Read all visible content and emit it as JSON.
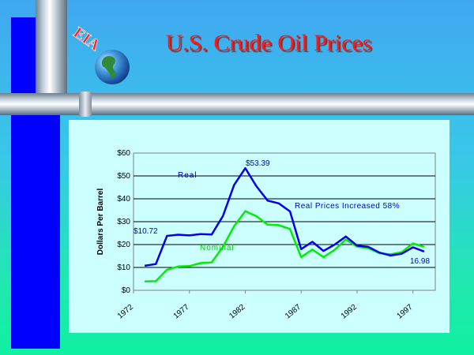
{
  "title": "U.S. Crude Oil Prices",
  "logo": {
    "text": "EIA"
  },
  "colors": {
    "real": "#0000ee",
    "nominal": "#00ee00",
    "title": "#ff1818"
  },
  "chart_data": {
    "type": "line",
    "ylabel": "Dollars Per Barrel",
    "ylim": [
      0,
      60
    ],
    "yticks": [
      "$0",
      "$10",
      "$20",
      "$30",
      "$40",
      "$50",
      "$60"
    ],
    "xticks": [
      "1972",
      "1977",
      "1982",
      "1987",
      "1992",
      "1997"
    ],
    "grid": true,
    "x": [
      1973,
      1974,
      1975,
      1976,
      1977,
      1978,
      1979,
      1980,
      1981,
      1982,
      1983,
      1984,
      1985,
      1986,
      1987,
      1988,
      1989,
      1990,
      1991,
      1992,
      1993,
      1994,
      1995,
      1996,
      1997,
      1998
    ],
    "series": [
      {
        "name": "Real",
        "color": "#0000ee",
        "values": [
          10.72,
          11.5,
          23.8,
          24.3,
          24.0,
          24.6,
          24.4,
          32.5,
          46.0,
          53.39,
          45.5,
          39.2,
          38.0,
          34.5,
          18.0,
          21.2,
          17.2,
          20.0,
          23.5,
          19.5,
          19.0,
          16.5,
          15.2,
          16.0,
          18.8,
          16.98
        ]
      },
      {
        "name": "Nominal",
        "color": "#00ee00",
        "values": [
          3.9,
          4.0,
          9.0,
          10.4,
          10.6,
          11.9,
          12.2,
          19.0,
          28.0,
          34.6,
          32.4,
          28.7,
          28.5,
          26.8,
          14.5,
          17.8,
          14.5,
          17.7,
          22.2,
          19.1,
          18.4,
          16.2,
          15.7,
          16.7,
          20.5,
          19.0
        ]
      }
    ],
    "annotations": {
      "real_label": "Real",
      "nominal_label": "Nominal",
      "peak": "$53.39",
      "start": "$10.72",
      "end": "16.98",
      "increase": "Real Prices Increased 58%"
    }
  }
}
